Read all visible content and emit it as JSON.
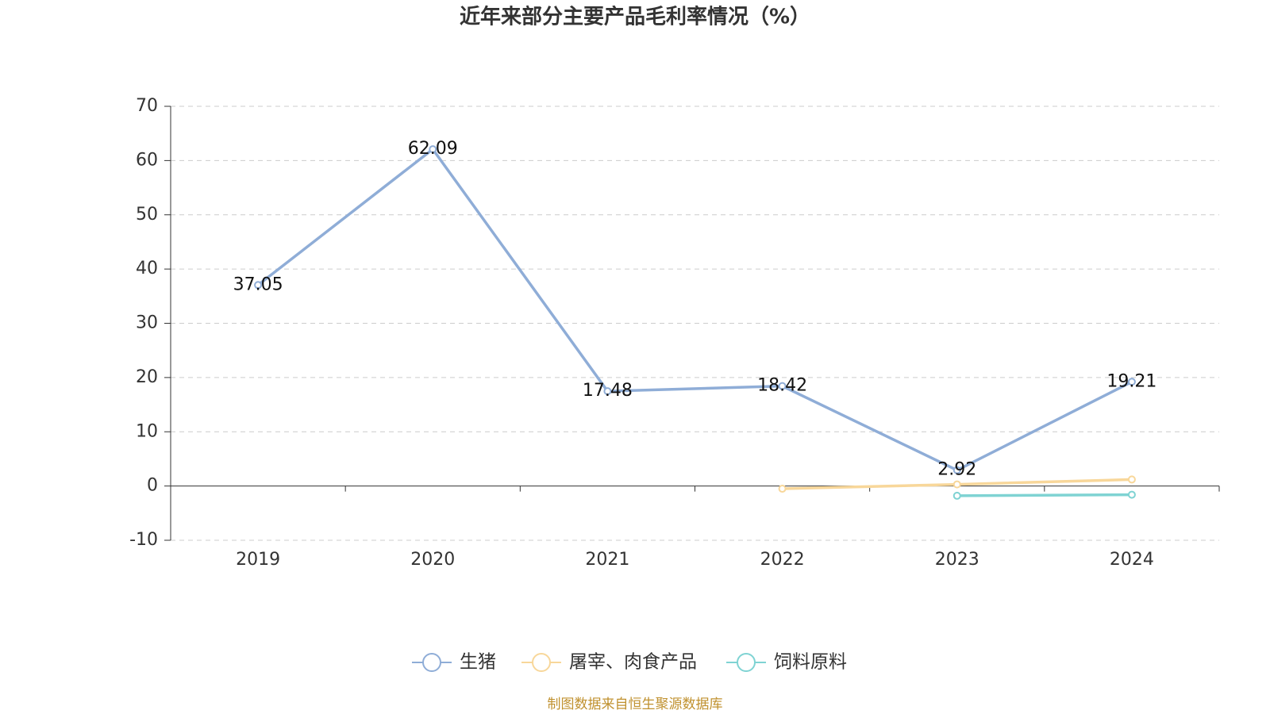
{
  "chart_data": {
    "type": "line",
    "title": "近年来部分主要产品毛利率情况（%）",
    "categories": [
      "2019",
      "2020",
      "2021",
      "2022",
      "2023",
      "2024"
    ],
    "series": [
      {
        "name": "生猪",
        "color": "#8fadd7",
        "values": [
          37.05,
          62.09,
          17.48,
          18.42,
          2.92,
          19.21
        ],
        "labels": true
      },
      {
        "name": "屠宰、肉食产品",
        "color": "#f8d79a",
        "values": [
          null,
          null,
          null,
          -0.5,
          0.3,
          1.2
        ]
      },
      {
        "name": "饲料原料",
        "color": "#7fd3d3",
        "values": [
          null,
          null,
          null,
          null,
          -1.8,
          -1.6
        ]
      }
    ],
    "ylim": [
      -10,
      70
    ],
    "yticks": [
      -10,
      0,
      10,
      20,
      30,
      40,
      50,
      60,
      70
    ],
    "grid": true,
    "source": "制图数据来自恒生聚源数据库"
  }
}
